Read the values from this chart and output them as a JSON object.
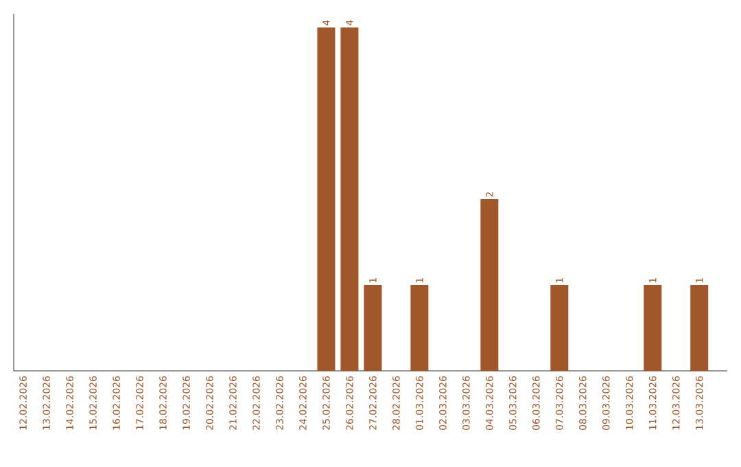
{
  "chart_data": {
    "type": "bar",
    "categories": [
      "12.02.2026",
      "13.02.2026",
      "14.02.2026",
      "15.02.2026",
      "16.02.2026",
      "17.02.2026",
      "18.02.2026",
      "19.02.2026",
      "20.02.2026",
      "21.02.2026",
      "22.02.2026",
      "23.02.2026",
      "24.02.2026",
      "25.02.2026",
      "26.02.2026",
      "27.02.2026",
      "28.02.2026",
      "01.03.2026",
      "02.03.2026",
      "03.03.2026",
      "04.03.2026",
      "05.03.2026",
      "06.03.2026",
      "07.03.2026",
      "08.03.2026",
      "09.03.2026",
      "10.03.2026",
      "11.03.2026",
      "12.03.2026",
      "13.03.2026"
    ],
    "values": [
      null,
      null,
      null,
      null,
      null,
      null,
      null,
      null,
      null,
      null,
      null,
      null,
      null,
      4,
      4,
      1,
      null,
      1,
      null,
      null,
      2,
      null,
      null,
      1,
      null,
      null,
      null,
      1,
      null,
      1
    ],
    "data_labels": true,
    "color": "#a0582a",
    "grid": false,
    "tick_labels": "x"
  }
}
